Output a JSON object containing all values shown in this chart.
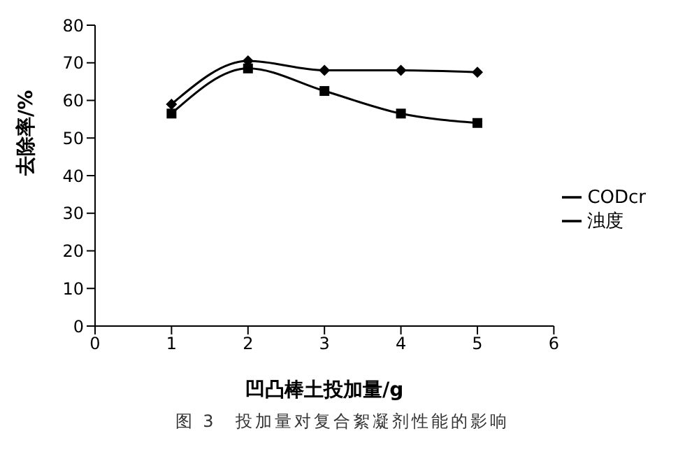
{
  "chart_data": {
    "type": "line",
    "xlabel": "凹凸棒土投加量/g",
    "ylabel": "去除率/%",
    "annotations": [
      "图 3　投加量对复合絮凝剂性能的影响"
    ],
    "x": [
      1,
      2,
      3,
      4,
      5
    ],
    "series": [
      {
        "name": "CODcr",
        "color": "#000000",
        "marker": "diamond",
        "values": [
          59,
          70.5,
          68,
          68,
          67.5
        ]
      },
      {
        "name": "浊度",
        "color": "#000000",
        "marker": "square",
        "values": [
          56.5,
          68.5,
          62.5,
          56.5,
          54
        ]
      }
    ],
    "xlim": [
      0,
      6
    ],
    "xticks": [
      0,
      1,
      2,
      3,
      4,
      5,
      6
    ],
    "ylim": [
      0,
      80
    ],
    "yticks": [
      0,
      10,
      20,
      30,
      40,
      50,
      60,
      70,
      80
    ],
    "grid": false,
    "legend": "right"
  }
}
